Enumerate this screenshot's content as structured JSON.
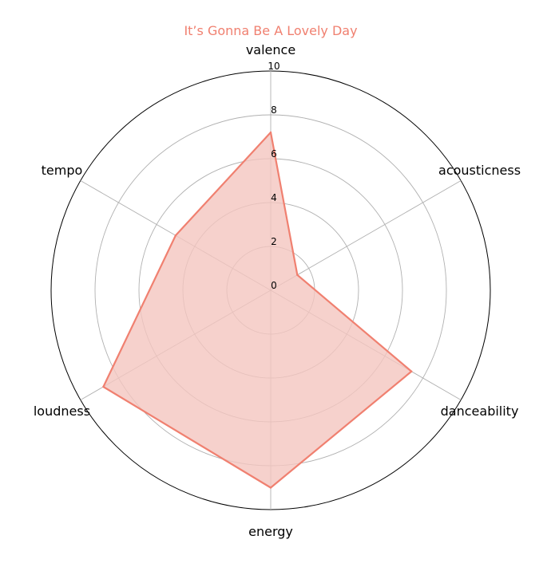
{
  "chart_data": {
    "type": "radar",
    "title": "It’s Gonna Be A Lovely Day",
    "title_color": "#f08070",
    "categories": [
      "valence",
      "acousticness",
      "danceability",
      "energy",
      "loudness",
      "tempo"
    ],
    "series": [
      {
        "values": [
          7.2,
          1.4,
          7.4,
          9.0,
          8.8,
          5.0
        ],
        "color": "#f08070",
        "fill_color": "#f4c5bf"
      }
    ],
    "rlim": [
      0,
      10
    ],
    "r_ticks": [
      "0",
      "2",
      "4",
      "6",
      "8",
      "10"
    ],
    "grid": true,
    "grid_color": "#b0b0b0"
  }
}
